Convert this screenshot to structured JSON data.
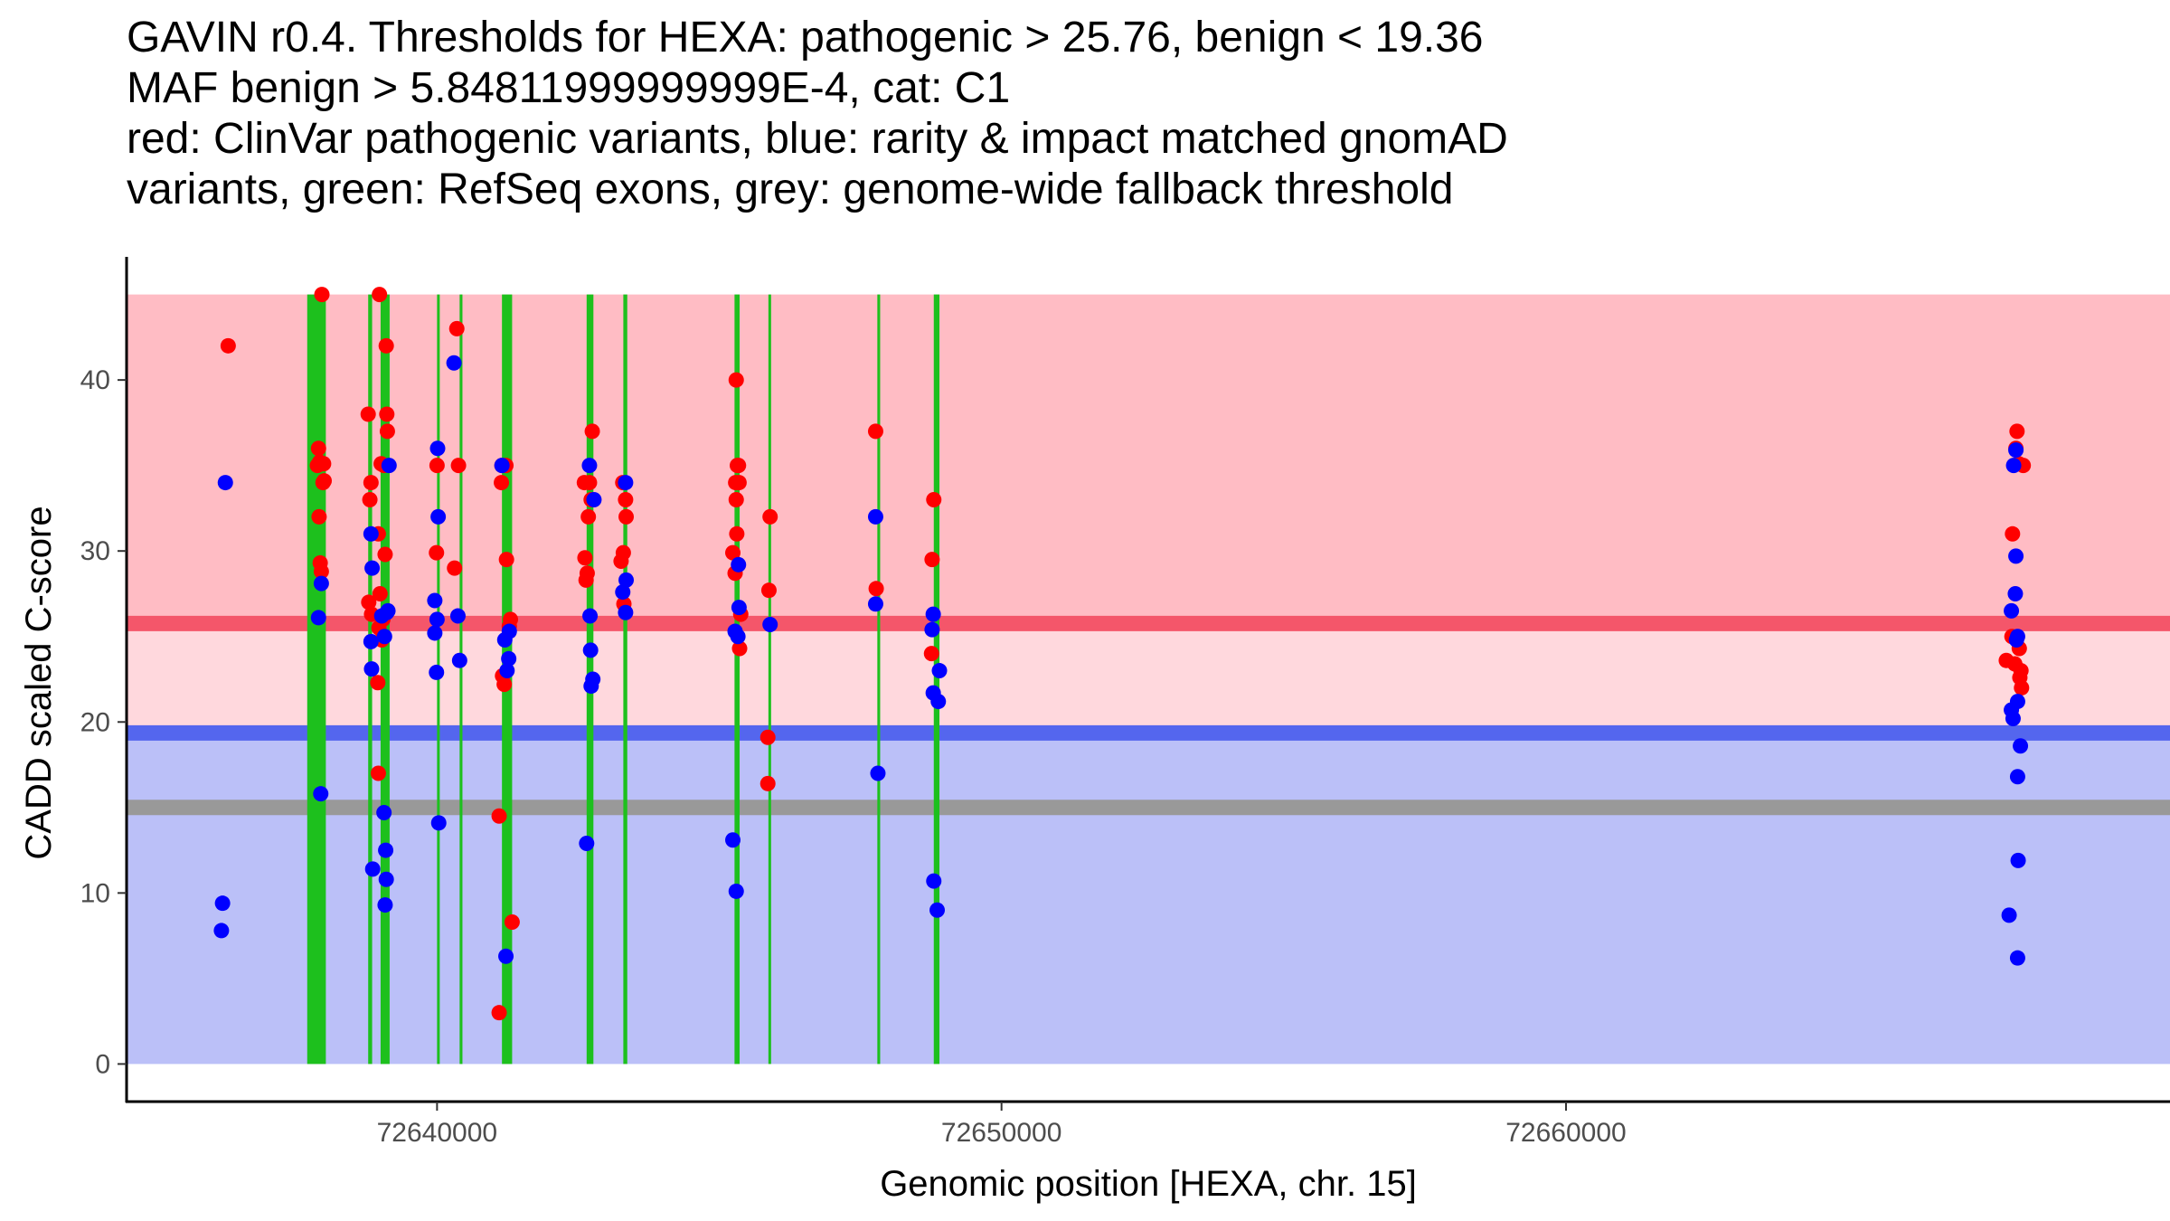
{
  "chart_data": {
    "type": "scatter",
    "title_lines": [
      "GAVIN r0.4. Thresholds for HEXA: pathogenic > 25.76, benign < 19.36",
      "MAF benign > 5.84811999999999E-4, cat: C1",
      "red: ClinVar pathogenic variants, blue: rarity & impact matched gnomAD",
      "variants, green: RefSeq exons, grey: genome-wide fallback threshold"
    ],
    "xlabel": "Genomic position [HEXA, chr. 15]",
    "ylabel": "CADD scaled C-score",
    "xlim": [
      72634500,
      72670700
    ],
    "ylim": [
      -2.2,
      47.2
    ],
    "xticks": [
      72640000,
      72650000,
      72660000
    ],
    "xtick_labels": [
      "72640000",
      "72650000",
      "72660000"
    ],
    "yticks": [
      0,
      10,
      20,
      30,
      40
    ],
    "ytick_labels": [
      "0",
      "10",
      "20",
      "30",
      "40"
    ],
    "colors": {
      "pathogenic_fill": "#ffbcc4",
      "middle_fill": "#ffd8dd",
      "benign_fill": "#bbc0f8",
      "pathogenic_line": "#f4566a",
      "benign_line": "#5466ee",
      "fallback_line": "#999999",
      "exon": "#1dc01d",
      "clinvar_point": "#ff0000",
      "gnomad_point": "#0000ff"
    },
    "regions": [
      {
        "name": "pathogenic",
        "y0": 25.76,
        "y1": 45
      },
      {
        "name": "uncertain",
        "y0": 19.36,
        "y1": 25.76
      },
      {
        "name": "benign",
        "y0": 0,
        "y1": 19.36
      }
    ],
    "region_xrange": [
      72634500,
      72670700
    ],
    "thresholds": [
      {
        "name": "pathogenic",
        "y": 25.76
      },
      {
        "name": "benign",
        "y": 19.36
      },
      {
        "name": "fallback",
        "y": 15
      }
    ],
    "exons": [
      {
        "start": 72637700,
        "end": 72638030
      },
      {
        "start": 72638780,
        "end": 72638850
      },
      {
        "start": 72639000,
        "end": 72639160
      },
      {
        "start": 72640000,
        "end": 72640040
      },
      {
        "start": 72640400,
        "end": 72640450
      },
      {
        "start": 72641150,
        "end": 72641330
      },
      {
        "start": 72642650,
        "end": 72642770
      },
      {
        "start": 72643300,
        "end": 72643370
      },
      {
        "start": 72645270,
        "end": 72645360
      },
      {
        "start": 72645870,
        "end": 72645900
      },
      {
        "start": 72647800,
        "end": 72647850
      },
      {
        "start": 72648800,
        "end": 72648900
      }
    ],
    "series": [
      {
        "name": "ClinVar pathogenic",
        "points": [
          [
            72636300,
            42
          ],
          [
            72637960,
            45
          ],
          [
            72637900,
            36
          ],
          [
            72637920,
            35.2
          ],
          [
            72637990,
            35.1
          ],
          [
            72637880,
            35
          ],
          [
            72638000,
            34.1
          ],
          [
            72637980,
            34
          ],
          [
            72637910,
            32
          ],
          [
            72637930,
            29.3
          ],
          [
            72637950,
            28.8
          ],
          [
            72638780,
            38
          ],
          [
            72638830,
            34
          ],
          [
            72638810,
            33
          ],
          [
            72638790,
            27
          ],
          [
            72638840,
            26.3
          ],
          [
            72638980,
            45
          ],
          [
            72639100,
            42
          ],
          [
            72639110,
            38
          ],
          [
            72639120,
            37
          ],
          [
            72639060,
            35
          ],
          [
            72639010,
            35.1
          ],
          [
            72638960,
            31
          ],
          [
            72639080,
            29.8
          ],
          [
            72638990,
            27.5
          ],
          [
            72639040,
            26
          ],
          [
            72638970,
            25.5
          ],
          [
            72639020,
            24.8
          ],
          [
            72638950,
            22.3
          ],
          [
            72638960,
            17
          ],
          [
            72640350,
            43
          ],
          [
            72640000,
            35
          ],
          [
            72640380,
            35
          ],
          [
            72639990,
            29.9
          ],
          [
            72640310,
            29
          ],
          [
            72641150,
            35
          ],
          [
            72641220,
            35
          ],
          [
            72641140,
            34
          ],
          [
            72641230,
            29.5
          ],
          [
            72641300,
            26
          ],
          [
            72641280,
            25.6
          ],
          [
            72641160,
            22.7
          ],
          [
            72641190,
            22.2
          ],
          [
            72641100,
            14.5
          ],
          [
            72641330,
            8.3
          ],
          [
            72641100,
            3
          ],
          [
            72642750,
            37
          ],
          [
            72642610,
            34
          ],
          [
            72642700,
            34
          ],
          [
            72642730,
            33
          ],
          [
            72642680,
            32
          ],
          [
            72642620,
            29.6
          ],
          [
            72642660,
            28.7
          ],
          [
            72642640,
            28.3
          ],
          [
            72643290,
            34
          ],
          [
            72643340,
            33
          ],
          [
            72643350,
            32
          ],
          [
            72643300,
            29.9
          ],
          [
            72643260,
            29.4
          ],
          [
            72643310,
            26.9
          ],
          [
            72645300,
            40
          ],
          [
            72645320,
            35
          ],
          [
            72645340,
            35
          ],
          [
            72645290,
            34
          ],
          [
            72645350,
            34
          ],
          [
            72645300,
            33
          ],
          [
            72645310,
            31
          ],
          [
            72645240,
            29.9
          ],
          [
            72645280,
            28.7
          ],
          [
            72645380,
            26.3
          ],
          [
            72645360,
            24.3
          ],
          [
            72645900,
            32
          ],
          [
            72645880,
            27.7
          ],
          [
            72645860,
            19.1
          ],
          [
            72645860,
            16.4
          ],
          [
            72647770,
            37
          ],
          [
            72647780,
            27.8
          ],
          [
            72648800,
            33
          ],
          [
            72648770,
            29.5
          ],
          [
            72648760,
            24
          ],
          [
            72667990,
            37
          ],
          [
            72667970,
            36
          ],
          [
            72668020,
            35.1
          ],
          [
            72668100,
            35
          ],
          [
            72667910,
            31
          ],
          [
            72667800,
            23.6
          ],
          [
            72667950,
            23.4
          ],
          [
            72667900,
            25
          ],
          [
            72668030,
            24.3
          ],
          [
            72668060,
            23
          ],
          [
            72668040,
            22.6
          ],
          [
            72668070,
            22
          ]
        ]
      },
      {
        "name": "gnomAD matched",
        "points": [
          [
            72636250,
            34
          ],
          [
            72636200,
            9.4
          ],
          [
            72636180,
            7.8
          ],
          [
            72637950,
            28.1
          ],
          [
            72637900,
            26.1
          ],
          [
            72637940,
            15.8
          ],
          [
            72638830,
            31
          ],
          [
            72638850,
            29
          ],
          [
            72638830,
            24.7
          ],
          [
            72638840,
            23.1
          ],
          [
            72638860,
            11.4
          ],
          [
            72639150,
            35
          ],
          [
            72639110,
            26.4
          ],
          [
            72639130,
            26.5
          ],
          [
            72639020,
            26.2
          ],
          [
            72639070,
            25
          ],
          [
            72639060,
            14.7
          ],
          [
            72639090,
            12.5
          ],
          [
            72639100,
            10.8
          ],
          [
            72639080,
            9.3
          ],
          [
            72640010,
            36
          ],
          [
            72640020,
            32
          ],
          [
            72639960,
            27.1
          ],
          [
            72640000,
            26
          ],
          [
            72640370,
            26.2
          ],
          [
            72639960,
            25.2
          ],
          [
            72639990,
            22.9
          ],
          [
            72640400,
            23.6
          ],
          [
            72640030,
            14.1
          ],
          [
            72640300,
            41
          ],
          [
            72641150,
            35
          ],
          [
            72641280,
            25.3
          ],
          [
            72641200,
            24.8
          ],
          [
            72641270,
            23.7
          ],
          [
            72641240,
            23
          ],
          [
            72641220,
            6.3
          ],
          [
            72642700,
            35
          ],
          [
            72642780,
            33
          ],
          [
            72642710,
            26.2
          ],
          [
            72642720,
            24.2
          ],
          [
            72642760,
            22.5
          ],
          [
            72642730,
            22.1
          ],
          [
            72642650,
            12.9
          ],
          [
            72643340,
            34
          ],
          [
            72643290,
            27.6
          ],
          [
            72643350,
            28.3
          ],
          [
            72643340,
            26.4
          ],
          [
            72645340,
            29.2
          ],
          [
            72645350,
            26.7
          ],
          [
            72645280,
            25.3
          ],
          [
            72645330,
            25
          ],
          [
            72645240,
            13.1
          ],
          [
            72645300,
            10.1
          ],
          [
            72645900,
            25.7
          ],
          [
            72647770,
            32
          ],
          [
            72647770,
            26.9
          ],
          [
            72647810,
            17
          ],
          [
            72648790,
            26.3
          ],
          [
            72648770,
            25.4
          ],
          [
            72648900,
            23
          ],
          [
            72648790,
            21.7
          ],
          [
            72648880,
            21.2
          ],
          [
            72648800,
            10.7
          ],
          [
            72648860,
            9
          ],
          [
            72667970,
            35.9
          ],
          [
            72667930,
            35
          ],
          [
            72667970,
            29.7
          ],
          [
            72667960,
            27.5
          ],
          [
            72667890,
            26.5
          ],
          [
            72668000,
            25
          ],
          [
            72667980,
            24.8
          ],
          [
            72668000,
            21.2
          ],
          [
            72667890,
            20.7
          ],
          [
            72667920,
            20.2
          ],
          [
            72668050,
            18.6
          ],
          [
            72668000,
            16.8
          ],
          [
            72668010,
            11.9
          ],
          [
            72667850,
            8.7
          ],
          [
            72668000,
            6.2
          ]
        ]
      }
    ]
  }
}
